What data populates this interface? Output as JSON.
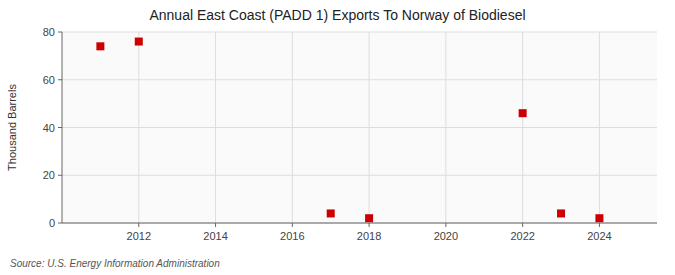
{
  "chart_data": {
    "type": "scatter",
    "title": "Annual East Coast (PADD 1) Exports To Norway of Biodiesel",
    "y_label": "Thousand Barrels",
    "source": "Source: U.S. Energy Information Administration",
    "x": [
      2011,
      2012,
      2017,
      2018,
      2022,
      2023,
      2024
    ],
    "values": [
      74,
      76,
      4,
      2,
      46,
      4,
      2
    ],
    "xlim": [
      2010.0,
      2025.5
    ],
    "ylim": [
      0,
      80
    ],
    "xticks": [
      2012,
      2014,
      2016,
      2018,
      2020,
      2022,
      2024
    ],
    "yticks": [
      0,
      20,
      40,
      60,
      80
    ],
    "color": "#cc0000",
    "marker": "square",
    "grid": true
  }
}
